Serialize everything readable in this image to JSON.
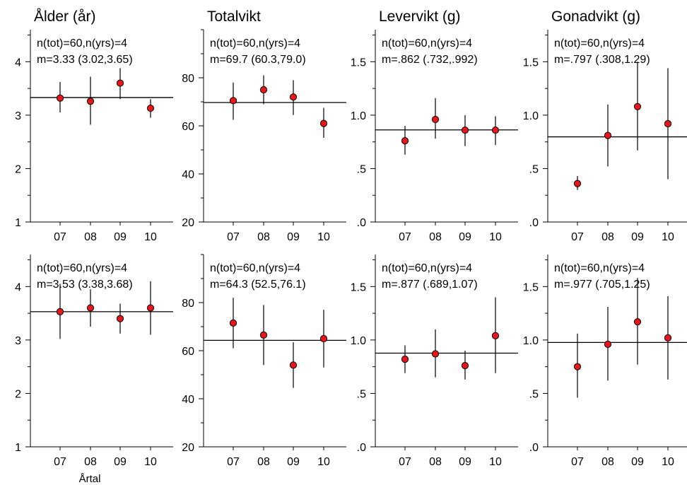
{
  "x_axis_label": "Årtal",
  "chart_data": [
    {
      "type": "scatter",
      "title": "Ålder (år)",
      "categories": [
        "07",
        "08",
        "09",
        "10"
      ],
      "ylim": [
        1,
        4.6
      ],
      "yticks": [
        "1",
        "2",
        "3",
        "4"
      ],
      "ytick_values": [
        1,
        2,
        3,
        4
      ],
      "annotation": [
        "n(tot)=60,n(yrs)=4",
        "m=3.33 (3.02,3.65)"
      ],
      "mean": 3.33,
      "values": [
        3.32,
        3.26,
        3.6,
        3.13
      ],
      "err_low": [
        3.05,
        2.82,
        3.3,
        2.95
      ],
      "err_high": [
        3.62,
        3.72,
        3.88,
        3.3
      ]
    },
    {
      "type": "scatter",
      "title": "Totalvikt",
      "categories": [
        "07",
        "08",
        "09",
        "10"
      ],
      "ylim": [
        20,
        100
      ],
      "yticks": [
        "20",
        "40",
        "60",
        "80"
      ],
      "ytick_values": [
        20,
        40,
        60,
        80
      ],
      "annotation": [
        "n(tot)=60,n(yrs)=4",
        "m=69.7 (60.3,79.0)"
      ],
      "mean": 69.7,
      "values": [
        70.5,
        75,
        72,
        61
      ],
      "err_low": [
        62.5,
        69,
        64.5,
        55
      ],
      "err_high": [
        78,
        81,
        79,
        67.5
      ]
    },
    {
      "type": "scatter",
      "title": "Levervikt (g)",
      "categories": [
        "07",
        "08",
        "09",
        "10"
      ],
      "ylim": [
        0,
        1.8
      ],
      "yticks": [
        ".0",
        ".5",
        "1.0",
        "1.5"
      ],
      "ytick_values": [
        0,
        0.5,
        1,
        1.5
      ],
      "annotation": [
        "n(tot)=60,n(yrs)=4",
        "m=.862 (.732,.992)"
      ],
      "mean": 0.862,
      "values": [
        0.76,
        0.96,
        0.86,
        0.86
      ],
      "err_low": [
        0.63,
        0.78,
        0.71,
        0.72
      ],
      "err_high": [
        0.9,
        1.16,
        1.0,
        0.99
      ]
    },
    {
      "type": "scatter",
      "title": "Gonadvikt (g)",
      "categories": [
        "07",
        "08",
        "09",
        "10"
      ],
      "ylim": [
        0,
        1.8
      ],
      "yticks": [
        ".0",
        ".5",
        "1.0",
        "1.5"
      ],
      "ytick_values": [
        0,
        0.5,
        1,
        1.5
      ],
      "annotation": [
        "n(tot)=60,n(yrs)=4",
        "m=.797 (.308,1.29)"
      ],
      "mean": 0.797,
      "values": [
        0.36,
        0.81,
        1.08,
        0.92
      ],
      "err_low": [
        0.3,
        0.52,
        0.67,
        0.4
      ],
      "err_high": [
        0.43,
        1.1,
        1.5,
        1.44
      ]
    },
    {
      "type": "scatter",
      "title": "",
      "categories": [
        "07",
        "08",
        "09",
        "10"
      ],
      "ylim": [
        1,
        4.6
      ],
      "yticks": [
        "1",
        "2",
        "3",
        "4"
      ],
      "ytick_values": [
        1,
        2,
        3,
        4
      ],
      "annotation": [
        "n(tot)=60,n(yrs)=4",
        "m=3.53 (3.38,3.68)"
      ],
      "mean": 3.53,
      "values": [
        3.53,
        3.6,
        3.4,
        3.6
      ],
      "err_low": [
        3.02,
        3.25,
        3.12,
        3.1
      ],
      "err_high": [
        4.05,
        3.95,
        3.68,
        4.1
      ]
    },
    {
      "type": "scatter",
      "title": "",
      "categories": [
        "07",
        "08",
        "09",
        "10"
      ],
      "ylim": [
        20,
        100
      ],
      "yticks": [
        "20",
        "40",
        "60",
        "80"
      ],
      "ytick_values": [
        20,
        40,
        60,
        80
      ],
      "annotation": [
        "n(tot)=60,n(yrs)=4",
        "m=64.3 (52.5,76.1)"
      ],
      "mean": 64.3,
      "values": [
        71.5,
        66.5,
        54,
        65
      ],
      "err_low": [
        61,
        54,
        44.5,
        53
      ],
      "err_high": [
        82,
        79,
        63.5,
        77
      ]
    },
    {
      "type": "scatter",
      "title": "",
      "categories": [
        "07",
        "08",
        "09",
        "10"
      ],
      "ylim": [
        0,
        1.8
      ],
      "yticks": [
        ".0",
        ".5",
        "1.0",
        "1.5"
      ],
      "ytick_values": [
        0,
        0.5,
        1,
        1.5
      ],
      "annotation": [
        "n(tot)=60,n(yrs)=4",
        "m=.877 (.689,1.07)"
      ],
      "mean": 0.877,
      "values": [
        0.82,
        0.87,
        0.76,
        1.04
      ],
      "err_low": [
        0.69,
        0.65,
        0.63,
        0.69
      ],
      "err_high": [
        0.95,
        1.1,
        0.9,
        1.4
      ]
    },
    {
      "type": "scatter",
      "title": "",
      "categories": [
        "07",
        "08",
        "09",
        "10"
      ],
      "ylim": [
        0,
        1.8
      ],
      "yticks": [
        ".0",
        ".5",
        "1.0",
        "1.5"
      ],
      "ytick_values": [
        0,
        0.5,
        1,
        1.5
      ],
      "annotation": [
        "n(tot)=60,n(yrs)=4",
        "m=.977 (.705,1.25)"
      ],
      "mean": 0.977,
      "values": [
        0.75,
        0.96,
        1.17,
        1.02
      ],
      "err_low": [
        0.46,
        0.62,
        0.77,
        0.63
      ],
      "err_high": [
        1.06,
        1.31,
        1.58,
        1.41
      ]
    }
  ]
}
